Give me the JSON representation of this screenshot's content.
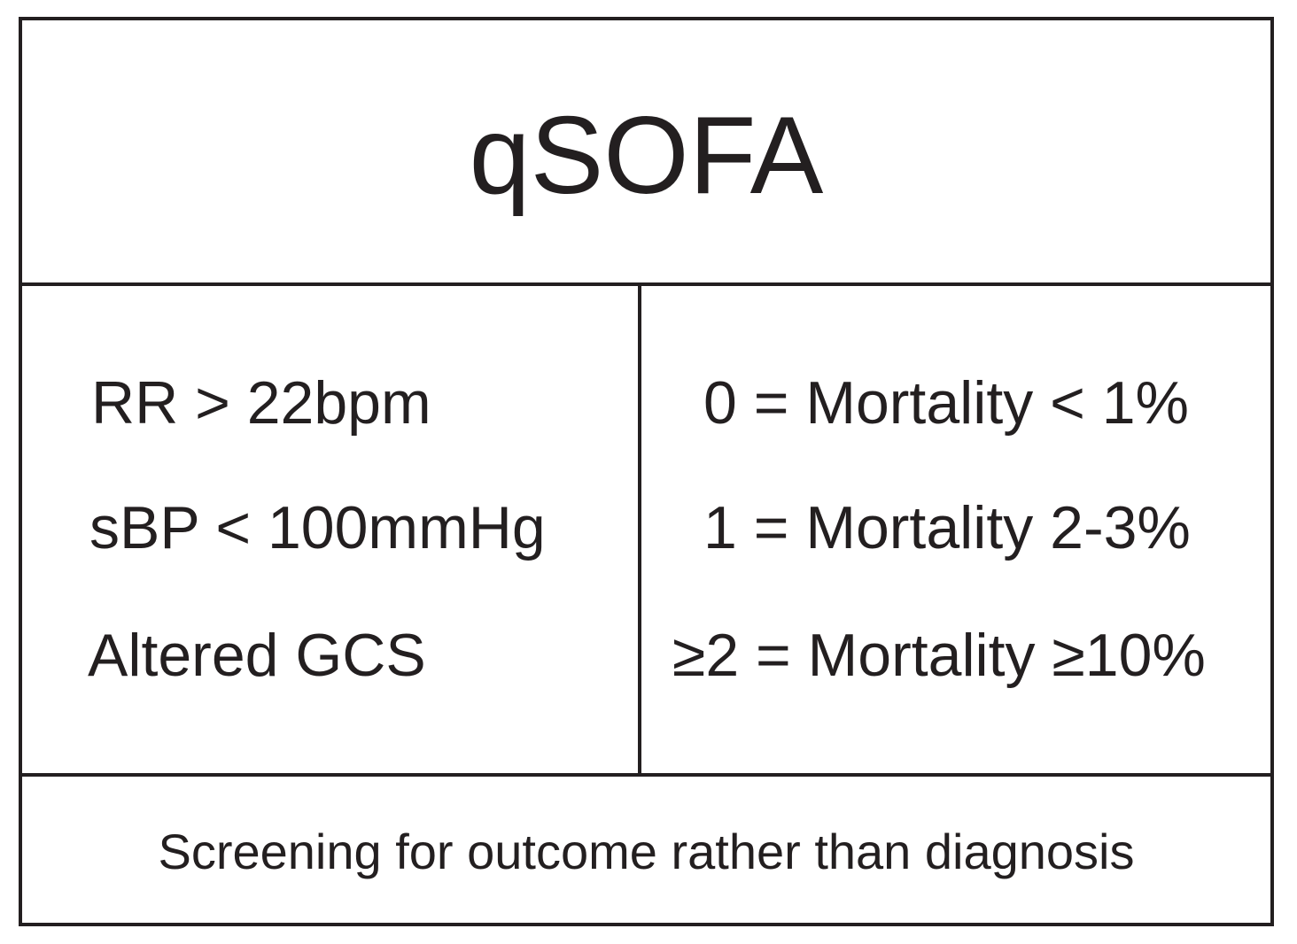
{
  "title": "qSOFA",
  "criteria": [
    "RR > 22bpm",
    "sBP < 100mmHg",
    "Altered GCS"
  ],
  "scores": [
    "0 = Mortality < 1%",
    "1 = Mortality 2-3%",
    "≥2 = Mortality ≥10%"
  ],
  "footer": "Screening for outcome rather than diagnosis"
}
